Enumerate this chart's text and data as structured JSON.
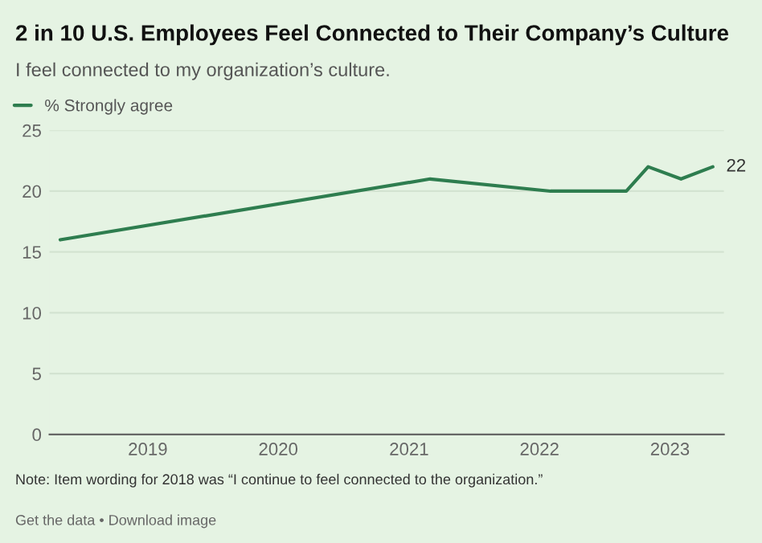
{
  "chart_data": {
    "type": "line",
    "title": "2 in 10 U.S. Employees Feel Connected to Their Company’s Culture",
    "subtitle": "I feel connected to my organization’s culture.",
    "x": [
      "2018-05",
      "2021-03",
      "2022-02",
      "2022-09",
      "2022-11",
      "2023-02",
      "2023-05"
    ],
    "series": [
      {
        "name": "% Strongly agree",
        "color": "#2e7d4f",
        "values": [
          16,
          21,
          20,
          20,
          22,
          21,
          22
        ],
        "value_labels": [
          null,
          null,
          null,
          null,
          null,
          null,
          "22"
        ]
      }
    ],
    "xlim": [
      "2018-04",
      "2023-06"
    ],
    "xticks": [
      {
        "value": "2019",
        "label": "2019"
      },
      {
        "value": "2020",
        "label": "2020"
      },
      {
        "value": "2021",
        "label": "2021"
      },
      {
        "value": "2022",
        "label": "2022"
      },
      {
        "value": "2023",
        "label": "2023"
      }
    ],
    "ylim": [
      0,
      25
    ],
    "yticks": [
      0,
      5,
      10,
      15,
      20,
      25
    ],
    "grid": "y",
    "legend": "top left",
    "marker": "none",
    "line_style": "solid",
    "annotations": [
      "Note: Item wording for 2018 was “I continue to feel connected to the organization.”",
      "Get the data • Download image"
    ]
  }
}
